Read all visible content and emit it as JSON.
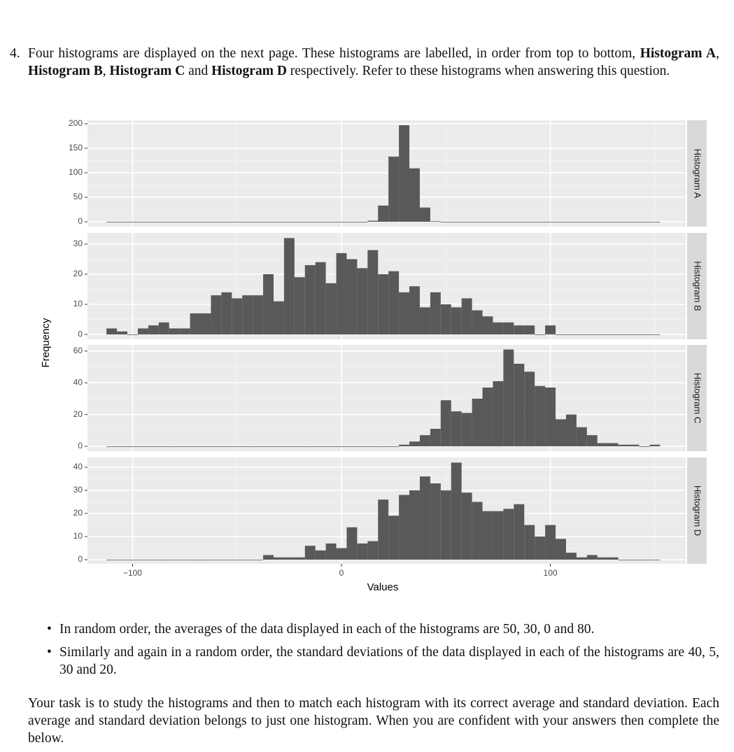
{
  "question": {
    "number": "4.",
    "parts": [
      {
        "text": "Four histograms are displayed on the next page. These histograms are labelled, in order from top to bottom, ",
        "bold": false
      },
      {
        "text": "Histogram A",
        "bold": true
      },
      {
        "text": ", ",
        "bold": false
      },
      {
        "text": "Histogram B",
        "bold": true
      },
      {
        "text": ", ",
        "bold": false
      },
      {
        "text": "Histogram C",
        "bold": true
      },
      {
        "text": " and ",
        "bold": false
      },
      {
        "text": "Histogram D",
        "bold": true
      },
      {
        "text": " respectively. Refer to these histograms when answering this question.",
        "bold": false
      }
    ]
  },
  "axes": {
    "x_label": "Values",
    "y_label": "Frequency"
  },
  "chart_data": [
    {
      "type": "histogram",
      "title": "Histogram A",
      "color": "#595959",
      "grid": true,
      "bins": [
        -112.5,
        -107.5,
        -102.5,
        -97.5,
        -92.5,
        -87.5,
        -82.5,
        -77.5,
        -72.5,
        -67.5,
        -62.5,
        -57.5,
        -52.5,
        -47.5,
        -42.5,
        -37.5,
        -32.5,
        -27.5,
        -22.5,
        -17.5,
        -12.5,
        -7.5,
        -2.5,
        2.5,
        7.5,
        12.5,
        17.5,
        22.5,
        27.5,
        32.5,
        37.5,
        42.5,
        47.5,
        52.5,
        57.5,
        62.5,
        67.5,
        72.5,
        77.5,
        82.5,
        87.5,
        92.5,
        97.5,
        102.5,
        107.5,
        112.5,
        117.5,
        122.5,
        127.5,
        132.5,
        137.5,
        142.5,
        147.5,
        152.5
      ],
      "values": [
        0,
        0,
        0,
        0,
        0,
        0,
        0,
        0,
        0,
        0,
        0,
        0,
        0,
        0,
        0,
        0,
        0,
        0,
        0,
        0,
        0,
        0,
        0,
        0,
        0,
        2,
        33,
        133,
        197,
        109,
        29,
        1,
        0,
        0,
        0,
        0,
        0,
        0,
        0,
        0,
        0,
        0,
        0,
        0,
        0,
        0,
        0,
        0,
        0,
        0,
        0,
        0,
        0
      ],
      "xlim": [
        -121.6,
        164.8
      ],
      "xticks": [
        {
          "value": -100,
          "label": "−100"
        },
        0,
        100
      ],
      "ylim": [
        -10,
        207
      ],
      "yticks": [
        0,
        50,
        100,
        150,
        200
      ]
    },
    {
      "type": "histogram",
      "title": "Histogram B",
      "color": "#595959",
      "grid": true,
      "bins": [
        -112.5,
        -107.5,
        -102.5,
        -97.5,
        -92.5,
        -87.5,
        -82.5,
        -77.5,
        -72.5,
        -67.5,
        -62.5,
        -57.5,
        -52.5,
        -47.5,
        -42.5,
        -37.5,
        -32.5,
        -27.5,
        -22.5,
        -17.5,
        -12.5,
        -7.5,
        -2.5,
        2.5,
        7.5,
        12.5,
        17.5,
        22.5,
        27.5,
        32.5,
        37.5,
        42.5,
        47.5,
        52.5,
        57.5,
        62.5,
        67.5,
        72.5,
        77.5,
        82.5,
        87.5,
        92.5,
        97.5,
        102.5,
        107.5,
        112.5,
        117.5,
        122.5,
        127.5,
        132.5,
        137.5,
        142.5,
        147.5,
        152.5
      ],
      "values": [
        2,
        1,
        0,
        2,
        3,
        4,
        2,
        2,
        7,
        7,
        13,
        14,
        12,
        13,
        13,
        20,
        11,
        32,
        19,
        23,
        24,
        17,
        27,
        25,
        22,
        28,
        20,
        21,
        14,
        16,
        9,
        14,
        10,
        9,
        12,
        8,
        6,
        4,
        4,
        3,
        3,
        0,
        3,
        0,
        0,
        0,
        0,
        0,
        0,
        0,
        0,
        0,
        0
      ],
      "xlim": [
        -121.6,
        164.8
      ],
      "xticks": [
        {
          "value": -100,
          "label": "−100"
        },
        0,
        100
      ],
      "ylim": [
        -1.6,
        33.7
      ],
      "yticks": [
        0,
        10,
        20,
        30
      ]
    },
    {
      "type": "histogram",
      "title": "Histogram C",
      "color": "#595959",
      "grid": true,
      "bins": [
        -112.5,
        -107.5,
        -102.5,
        -97.5,
        -92.5,
        -87.5,
        -82.5,
        -77.5,
        -72.5,
        -67.5,
        -62.5,
        -57.5,
        -52.5,
        -47.5,
        -42.5,
        -37.5,
        -32.5,
        -27.5,
        -22.5,
        -17.5,
        -12.5,
        -7.5,
        -2.5,
        2.5,
        7.5,
        12.5,
        17.5,
        22.5,
        27.5,
        32.5,
        37.5,
        42.5,
        47.5,
        52.5,
        57.5,
        62.5,
        67.5,
        72.5,
        77.5,
        82.5,
        87.5,
        92.5,
        97.5,
        102.5,
        107.5,
        112.5,
        117.5,
        122.5,
        127.5,
        132.5,
        137.5,
        142.5,
        147.5,
        152.5
      ],
      "values": [
        0,
        0,
        0,
        0,
        0,
        0,
        0,
        0,
        0,
        0,
        0,
        0,
        0,
        0,
        0,
        0,
        0,
        0,
        0,
        0,
        0,
        0,
        0,
        0,
        0,
        0,
        0,
        0,
        1,
        3,
        7,
        11,
        29,
        22,
        21,
        30,
        37,
        41,
        61,
        52,
        47,
        38,
        37,
        17,
        20,
        12,
        7,
        2,
        2,
        1,
        1,
        0,
        1
      ],
      "xlim": [
        -121.6,
        164.8
      ],
      "xticks": [
        {
          "value": -100,
          "label": "−100"
        },
        0,
        100
      ],
      "ylim": [
        -3.1,
        63.9
      ],
      "yticks": [
        0,
        20,
        40,
        60
      ]
    },
    {
      "type": "histogram",
      "title": "Histogram D",
      "color": "#595959",
      "grid": true,
      "bins": [
        -112.5,
        -107.5,
        -102.5,
        -97.5,
        -92.5,
        -87.5,
        -82.5,
        -77.5,
        -72.5,
        -67.5,
        -62.5,
        -57.5,
        -52.5,
        -47.5,
        -42.5,
        -37.5,
        -32.5,
        -27.5,
        -22.5,
        -17.5,
        -12.5,
        -7.5,
        -2.5,
        2.5,
        7.5,
        12.5,
        17.5,
        22.5,
        27.5,
        32.5,
        37.5,
        42.5,
        47.5,
        52.5,
        57.5,
        62.5,
        67.5,
        72.5,
        77.5,
        82.5,
        87.5,
        92.5,
        97.5,
        102.5,
        107.5,
        112.5,
        117.5,
        122.5,
        127.5,
        132.5,
        137.5,
        142.5,
        147.5,
        152.5
      ],
      "values": [
        0,
        0,
        0,
        0,
        0,
        0,
        0,
        0,
        0,
        0,
        0,
        0,
        0,
        0,
        0,
        2,
        1,
        1,
        1,
        6,
        4,
        7,
        5,
        14,
        7,
        8,
        26,
        19,
        28,
        30,
        36,
        33,
        30,
        42,
        29,
        25,
        21,
        21,
        22,
        24,
        15,
        10,
        15,
        9,
        3,
        1,
        2,
        1,
        1,
        0,
        0,
        0,
        0
      ],
      "xlim": [
        -121.6,
        164.8
      ],
      "xticks": [
        {
          "value": -100,
          "label": "−100"
        },
        0,
        100
      ],
      "ylim": [
        -1.8,
        44.2
      ],
      "yticks": [
        0,
        10,
        20,
        30,
        40
      ]
    }
  ],
  "bullets": [
    "In random order, the averages of the data displayed in each of the histograms are 50, 30, 0 and 80.",
    "Similarly and again in a random order, the standard deviations of the data displayed in each of the histograms are 40, 5, 30 and 20."
  ],
  "closing": "Your task is to study the histograms and then to match each histogram with its correct average and standard deviation. Each average and standard deviation belongs to just one histogram. When you are confident with your answers then complete the below."
}
